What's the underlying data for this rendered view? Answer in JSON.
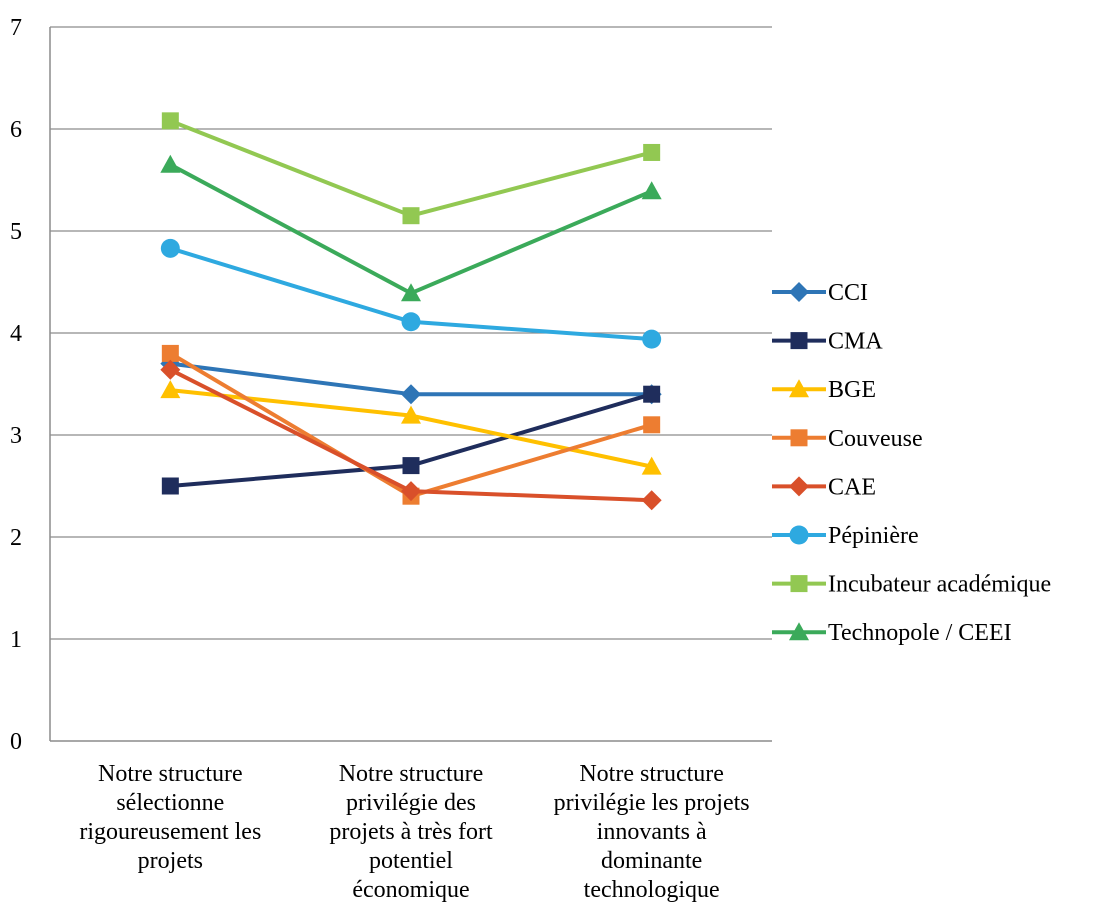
{
  "chart_data": {
    "type": "line",
    "ylim": [
      0,
      7
    ],
    "yticks": [
      "0",
      "1",
      "2",
      "3",
      "4",
      "5",
      "6",
      "7"
    ],
    "grid": true,
    "legend_position": "right",
    "categories": [
      [
        "Notre structure",
        "sélectionne",
        "rigoureusement les",
        "projets"
      ],
      [
        "Notre structure",
        "privilégie des",
        "projets à très fort",
        "potentiel",
        "économique"
      ],
      [
        "Notre structure",
        "privilégie les projets",
        "innovants à",
        "dominante",
        "technologique"
      ]
    ],
    "series": [
      {
        "name": "CCI",
        "values": [
          3.7,
          3.4,
          3.4
        ],
        "color": "#2E75B6",
        "marker": "diamond"
      },
      {
        "name": "CMA",
        "values": [
          2.5,
          2.7,
          3.4
        ],
        "color": "#1F2D5C",
        "marker": "square"
      },
      {
        "name": "BGE",
        "values": [
          3.44,
          3.19,
          2.69
        ],
        "color": "#FFC000",
        "marker": "triangle"
      },
      {
        "name": "Couveuse",
        "values": [
          3.8,
          2.4,
          3.1
        ],
        "color": "#ED7D31",
        "marker": "square"
      },
      {
        "name": "CAE",
        "values": [
          3.64,
          2.45,
          2.36
        ],
        "color": "#D9502A",
        "marker": "diamond"
      },
      {
        "name": "Pépinière",
        "values": [
          4.83,
          4.11,
          3.94
        ],
        "color": "#2EA9E0",
        "marker": "circle"
      },
      {
        "name": "Incubateur académique",
        "values": [
          6.08,
          5.15,
          5.77
        ],
        "color": "#92C852",
        "marker": "square"
      },
      {
        "name": "Technopole / CEEI",
        "values": [
          5.65,
          4.39,
          5.39
        ],
        "color": "#3BAA5A",
        "marker": "triangle"
      }
    ]
  }
}
